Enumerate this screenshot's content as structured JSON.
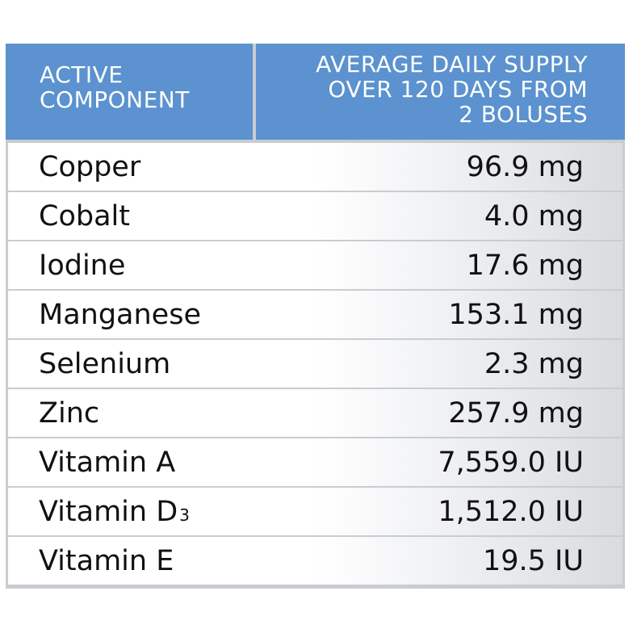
{
  "header": {
    "component_line1": "ACTIVE",
    "component_line2": "COMPONENT",
    "supply_line1": "AVERAGE DAILY SUPPLY",
    "supply_line2": "OVER 120 DAYS FROM",
    "supply_line3": "2 BOLUSES"
  },
  "rows": [
    {
      "name": "Copper",
      "sub": "",
      "value": "96.9 mg"
    },
    {
      "name": "Cobalt",
      "sub": "",
      "value": "4.0 mg"
    },
    {
      "name": "Iodine",
      "sub": "",
      "value": "17.6 mg"
    },
    {
      "name": "Manganese",
      "sub": "",
      "value": "153.1 mg"
    },
    {
      "name": "Selenium",
      "sub": "",
      "value": "2.3 mg"
    },
    {
      "name": "Zinc",
      "sub": "",
      "value": "257.9 mg"
    },
    {
      "name": "Vitamin A",
      "sub": "",
      "value": "7,559.0 IU"
    },
    {
      "name": "Vitamin D",
      "sub": "3",
      "value": "1,512.0 IU"
    },
    {
      "name": "Vitamin E",
      "sub": "",
      "value": "19.5 IU"
    }
  ],
  "colors": {
    "header_bg": "#5b92cf",
    "header_text": "#ffffff",
    "row_text": "#111111",
    "grid": "#c9ccd0"
  }
}
